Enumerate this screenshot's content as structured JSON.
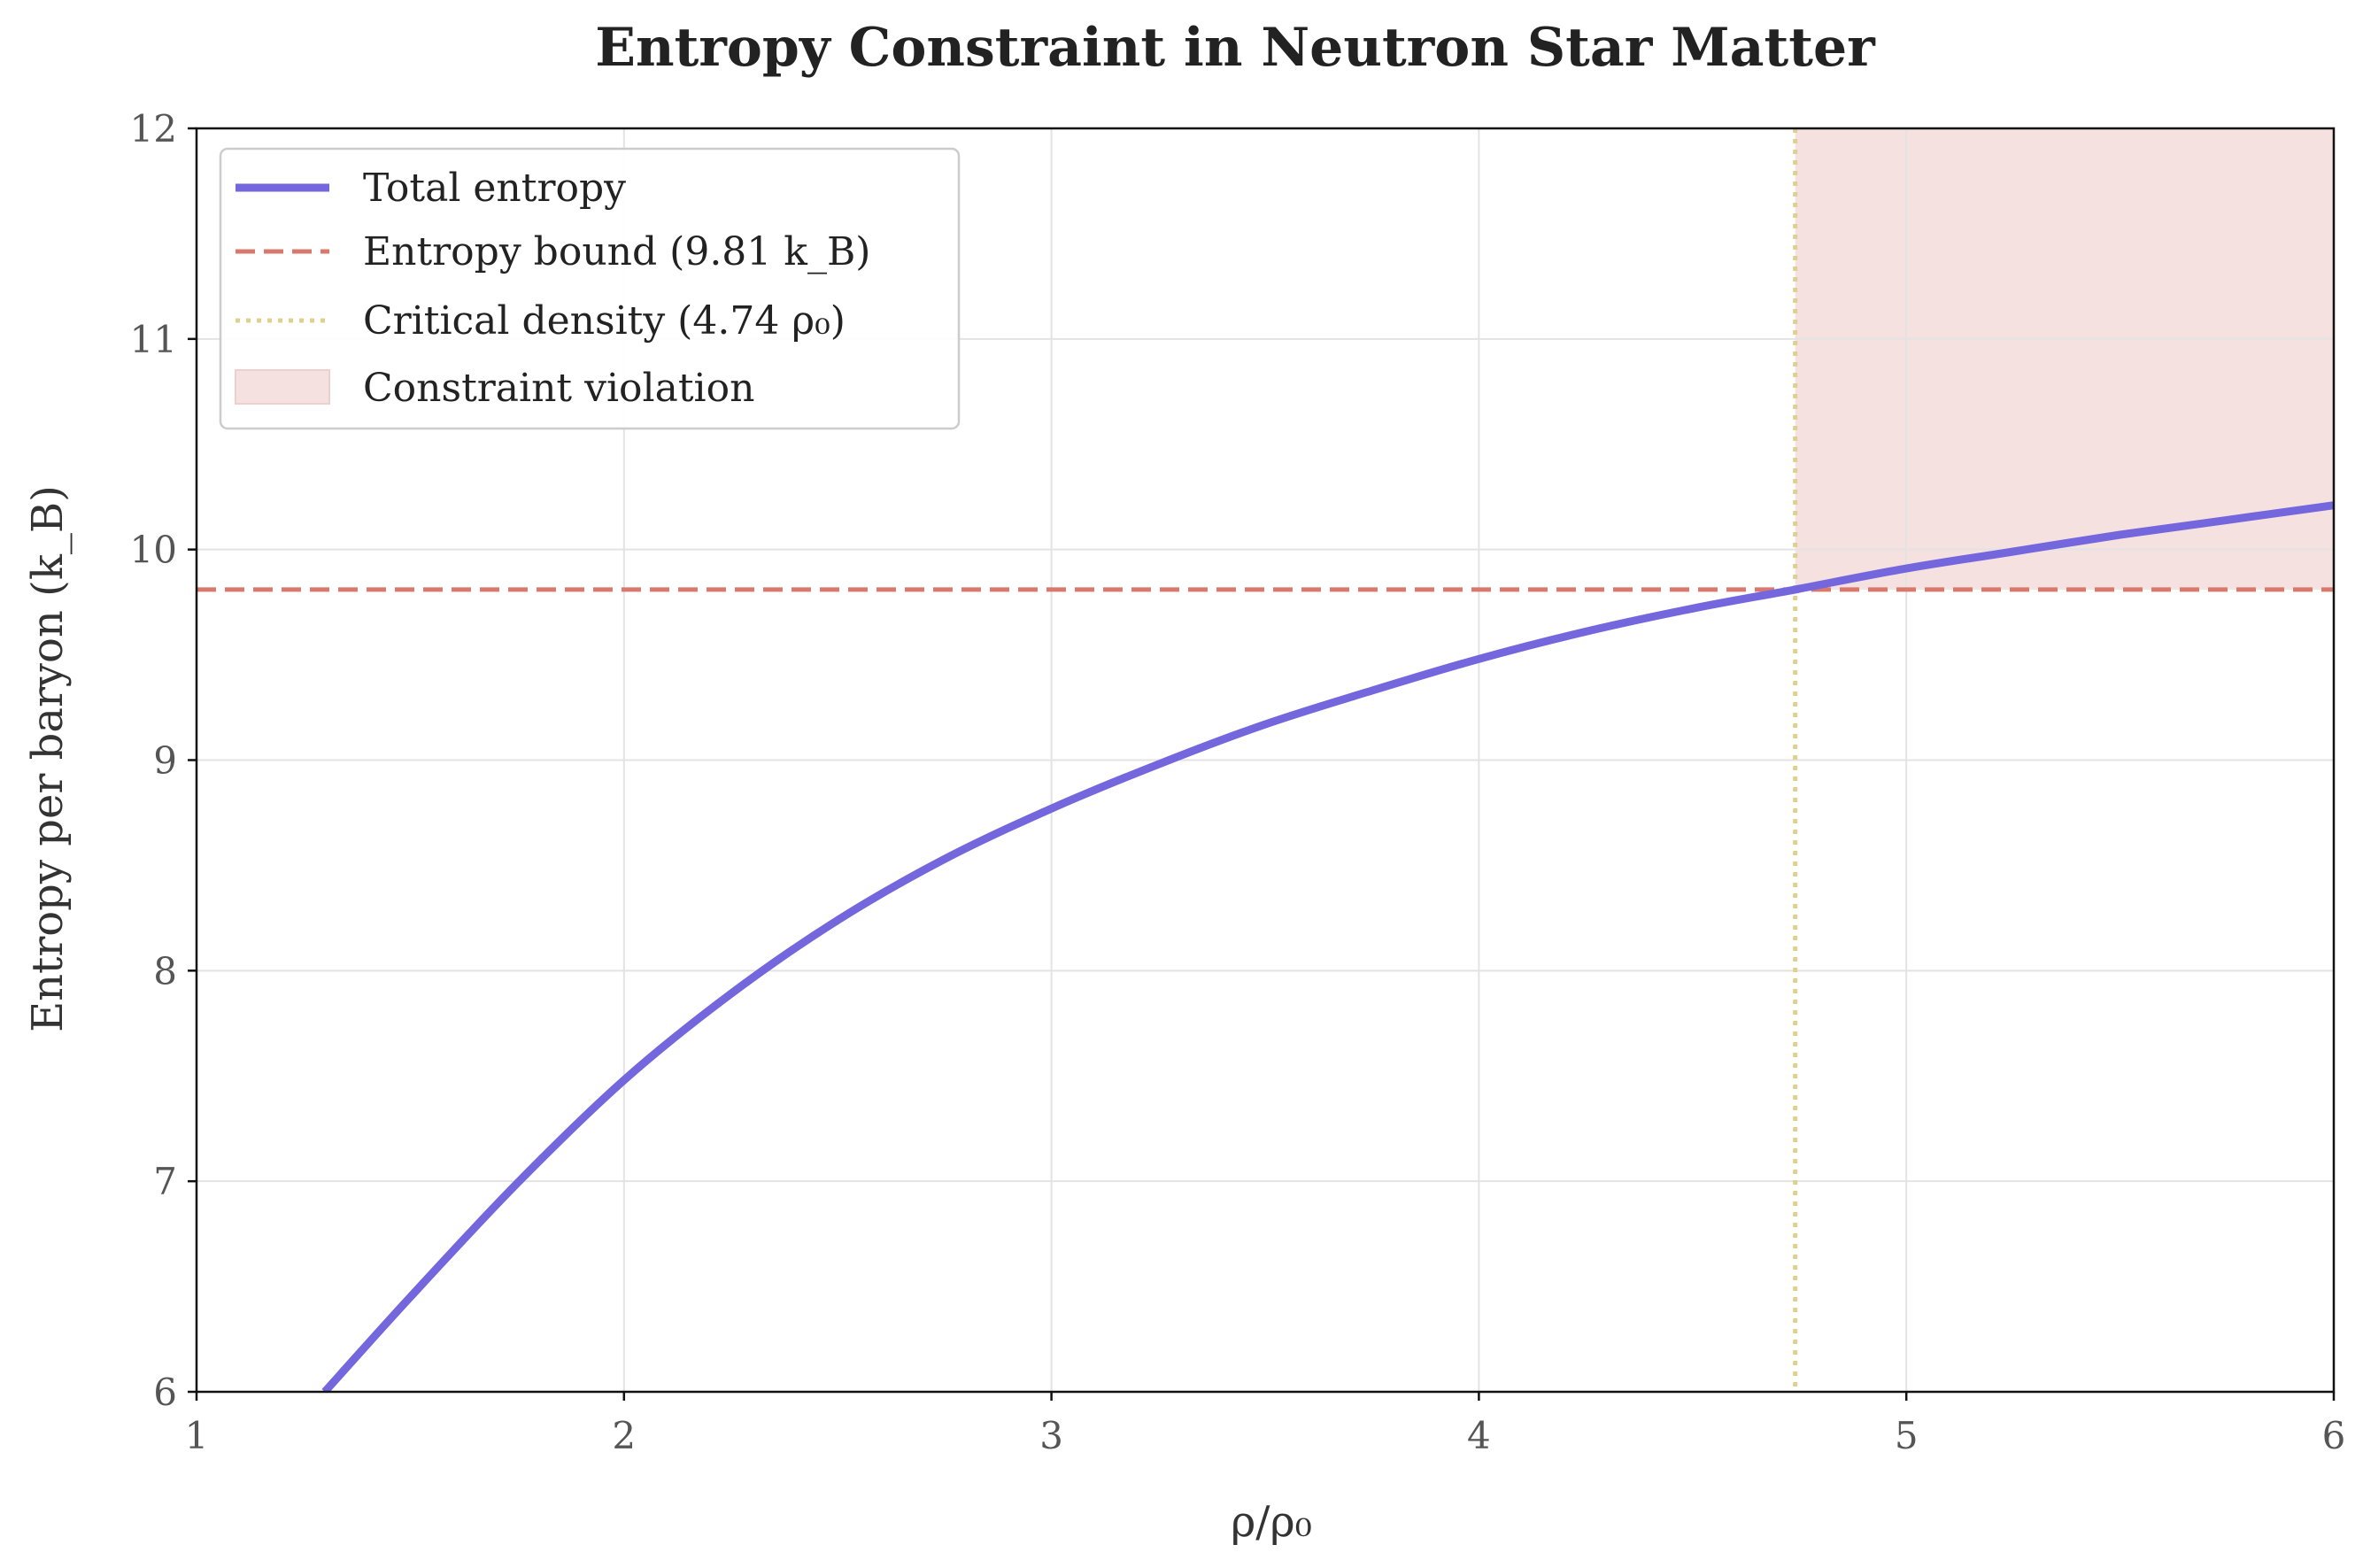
{
  "chart_data": {
    "type": "line",
    "title": "Entropy Constraint in Neutron Star Matter",
    "xlabel": "ρ/ρ₀",
    "ylabel": "Entropy per baryon (k_B)",
    "xlim": [
      1,
      6
    ],
    "ylim": [
      6,
      12
    ],
    "xticks": [
      1,
      2,
      3,
      4,
      5,
      6
    ],
    "yticks": [
      6,
      7,
      8,
      9,
      10,
      11,
      12
    ],
    "grid": true,
    "legend_position": "top-left",
    "series": [
      {
        "name": "Total entropy",
        "color": "#7466dd",
        "style": "solid",
        "x": [
          1.3,
          1.5,
          1.75,
          2.0,
          2.25,
          2.5,
          2.75,
          3.0,
          3.25,
          3.5,
          3.75,
          4.0,
          4.25,
          4.5,
          4.74,
          5.0,
          5.25,
          5.5,
          5.75,
          6.0
        ],
        "y": [
          6.0,
          6.45,
          6.99,
          7.48,
          7.89,
          8.24,
          8.53,
          8.77,
          8.98,
          9.17,
          9.33,
          9.48,
          9.61,
          9.72,
          9.81,
          9.91,
          9.99,
          10.07,
          10.14,
          10.21
        ]
      }
    ],
    "hlines": [
      {
        "name": "Entropy bound (9.81 k_B)",
        "y": 9.81,
        "color": "#d9786d",
        "style": "dashed"
      }
    ],
    "vlines": [
      {
        "name": "Critical density (4.74 ρ₀)",
        "x": 4.74,
        "color": "#e0d08e",
        "style": "dotted"
      }
    ],
    "regions": [
      {
        "name": "Constraint violation",
        "x": [
          4.74,
          6
        ],
        "y": [
          9.81,
          12
        ],
        "color": "#f5e1df"
      }
    ]
  }
}
